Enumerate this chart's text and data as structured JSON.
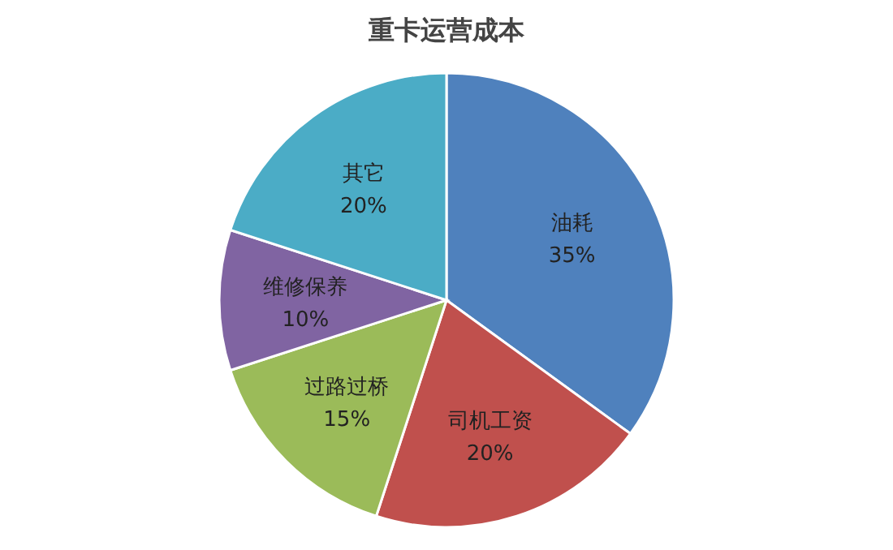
{
  "chart_data": {
    "type": "pie",
    "title": "重卡运营成本",
    "categories": [
      "油耗",
      "司机工资",
      "过路过桥",
      "维修保养",
      "其它"
    ],
    "values": [
      35,
      20,
      15,
      10,
      20
    ],
    "value_labels": [
      "35%",
      "20%",
      "15%",
      "10%",
      "20%"
    ],
    "colors": [
      "#4f81bd",
      "#c0504d",
      "#9bbb59",
      "#8064a2",
      "#4bacc6"
    ],
    "legend": false
  }
}
